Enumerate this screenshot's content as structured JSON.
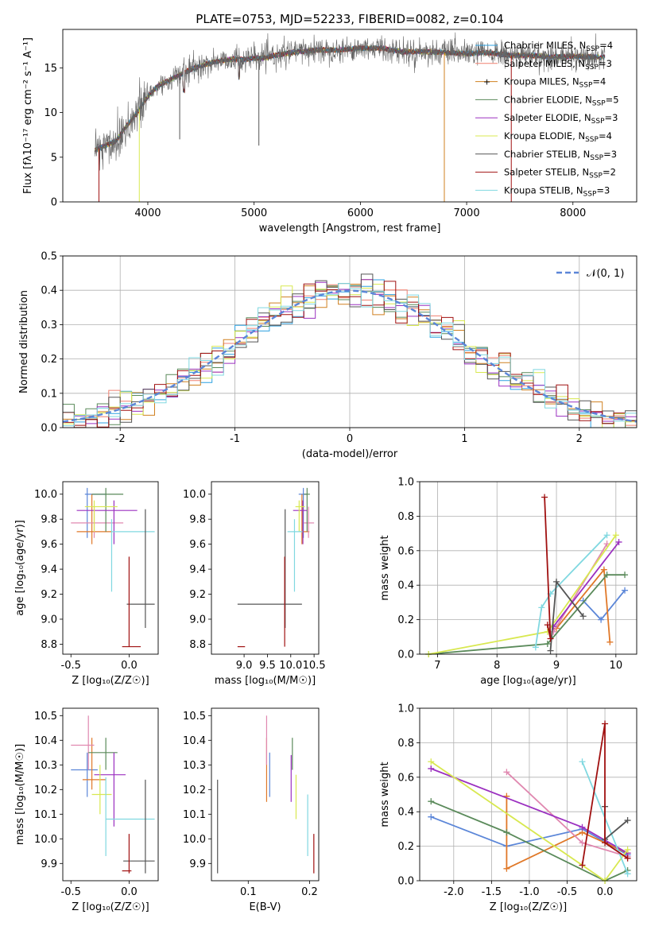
{
  "figure_title": "PLATE=0753, MJD=52233, FIBERID=0082, z=0.104",
  "colors": {
    "chabrier_miles": "#2ca0e0",
    "salpeter_miles": "#f08070",
    "kroupa_miles": "#d08020",
    "chabrier_elodie": "#5a8a5a",
    "salpeter_elodie": "#9b30c0",
    "kroupa_elodie": "#d8e850",
    "chabrier_stelib": "#555555",
    "salpeter_stelib": "#a01010",
    "kroupa_stelib": "#80d8e0",
    "blue": "#5b86d8",
    "orange": "#e07828",
    "pink": "#e088b0",
    "green": "#5a8a5a",
    "purple": "#9b30c0",
    "lime": "#d8e850",
    "grey": "#555555",
    "red": "#a01010",
    "cyan": "#80d8e0"
  },
  "chart_data": [
    {
      "id": "spectrum",
      "type": "line",
      "title": "PLATE=0753, MJD=52233, FIBERID=0082, z=0.104",
      "xlabel": "wavelength [Angstrom, rest frame]",
      "ylabel": "Flux [fλ10⁻¹⁷ erg cm⁻² s⁻¹ A⁻¹]",
      "xlim": [
        3200,
        8600
      ],
      "ylim": [
        0,
        19.3
      ],
      "xticks": [
        4000,
        5000,
        6000,
        7000,
        8000
      ],
      "yticks": [
        0,
        5,
        10,
        15
      ],
      "grid": false,
      "legend_position": "upper right",
      "continuum": [
        [
          3500,
          5.8
        ],
        [
          3700,
          6.8
        ],
        [
          3800,
          8.5
        ],
        [
          3900,
          10.0
        ],
        [
          4000,
          11.8
        ],
        [
          4100,
          13.0
        ],
        [
          4200,
          13.6
        ],
        [
          4300,
          14.2
        ],
        [
          4400,
          14.8
        ],
        [
          4500,
          15.2
        ],
        [
          4600,
          15.6
        ],
        [
          4700,
          15.8
        ],
        [
          4800,
          16.0
        ],
        [
          4900,
          15.9
        ],
        [
          5000,
          16.1
        ],
        [
          5100,
          16.1
        ],
        [
          5200,
          16.4
        ],
        [
          5400,
          16.8
        ],
        [
          5600,
          17.0
        ],
        [
          5800,
          17.0
        ],
        [
          6000,
          17.2
        ],
        [
          6200,
          17.2
        ],
        [
          6400,
          16.8
        ],
        [
          6600,
          16.8
        ],
        [
          6800,
          16.7
        ],
        [
          7000,
          16.6
        ],
        [
          7200,
          16.7
        ],
        [
          7400,
          16.4
        ],
        [
          7600,
          16.4
        ],
        [
          7800,
          16.2
        ],
        [
          8000,
          16.3
        ],
        [
          8200,
          16.2
        ],
        [
          8300,
          16.2
        ]
      ],
      "series": [
        {
          "name": "Chabrier MILES, N_SSP=4",
          "label": "Chabrier MILES, N",
          "sub": "SSP",
          "count": "=4",
          "color_key": "chabrier_miles"
        },
        {
          "name": "Salpeter MILES, N_SSP=3",
          "label": "Salpeter MILES, N",
          "sub": "SSP",
          "count": "=3",
          "color_key": "salpeter_miles"
        },
        {
          "name": "Kroupa MILES, N_SSP=4",
          "label": "Kroupa MILES, N",
          "sub": "SSP",
          "count": "=4",
          "color_key": "kroupa_miles"
        },
        {
          "name": "Chabrier ELODIE, N_SSP=5",
          "label": "Chabrier ELODIE, N",
          "sub": "SSP",
          "count": "=5",
          "color_key": "chabrier_elodie"
        },
        {
          "name": "Salpeter ELODIE, N_SSP=3",
          "label": "Salpeter ELODIE, N",
          "sub": "SSP",
          "count": "=3",
          "color_key": "salpeter_elodie"
        },
        {
          "name": "Kroupa ELODIE, N_SSP=4",
          "label": "Kroupa ELODIE, N",
          "sub": "SSP",
          "count": "=4",
          "color_key": "kroupa_elodie"
        },
        {
          "name": "Chabrier STELIB, N_SSP=3",
          "label": "Chabrier STELIB, N",
          "sub": "SSP",
          "count": "=3",
          "color_key": "chabrier_stelib"
        },
        {
          "name": "Salpeter STELIB, N_SSP=2",
          "label": "Salpeter STELIB, N",
          "sub": "SSP",
          "count": "=2",
          "color_key": "salpeter_stelib"
        },
        {
          "name": "Kroupa STELIB, N_SSP=3",
          "label": "Kroupa STELIB, N",
          "sub": "SSP",
          "count": "=3",
          "color_key": "kroupa_stelib"
        }
      ]
    },
    {
      "id": "histogram",
      "type": "line",
      "xlabel": "(data-model)/error",
      "ylabel": "Normed distribution",
      "xlim": [
        -2.5,
        2.5
      ],
      "ylim": [
        0,
        0.5
      ],
      "xticks": [
        -2,
        -1,
        0,
        1,
        2
      ],
      "yticks": [
        0.0,
        0.1,
        0.2,
        0.3,
        0.4,
        0.5
      ],
      "grid": true,
      "legend": "𝒩(0, 1)",
      "legend_position": "upper right",
      "bin_width": 0.1,
      "series_colors": [
        "chabrier_miles",
        "salpeter_miles",
        "kroupa_miles",
        "chabrier_elodie",
        "salpeter_elodie",
        "kroupa_elodie",
        "chabrier_stelib",
        "salpeter_stelib",
        "kroupa_stelib"
      ]
    },
    {
      "id": "age_vs_Z",
      "type": "scatter",
      "xlabel": "Z [log₁₀(Z/Z☉)]",
      "ylabel": "age  [log₁₀(age/yr)]",
      "xlim": [
        -0.57,
        0.25
      ],
      "ylim": [
        8.72,
        10.1
      ],
      "xticks": [
        -0.5,
        0.0
      ],
      "yticks": [
        8.8,
        9.0,
        9.2,
        9.4,
        9.6,
        9.8,
        10.0
      ],
      "points": [
        {
          "x": -0.36,
          "y": 10.0,
          "xlo": -0.38,
          "xhi": -0.2,
          "ylo": 9.65,
          "yhi": 10.05,
          "color_key": "blue"
        },
        {
          "x": -0.32,
          "y": 9.7,
          "xlo": -0.45,
          "xhi": -0.15,
          "ylo": 9.6,
          "yhi": 10.0,
          "color_key": "orange"
        },
        {
          "x": -0.3,
          "y": 9.77,
          "xlo": -0.5,
          "xhi": -0.05,
          "ylo": 9.65,
          "yhi": 9.9,
          "color_key": "pink"
        },
        {
          "x": -0.2,
          "y": 10.0,
          "xlo": -0.32,
          "xhi": -0.05,
          "ylo": 9.7,
          "yhi": 10.05,
          "color_key": "green"
        },
        {
          "x": -0.13,
          "y": 9.87,
          "xlo": -0.45,
          "xhi": 0.07,
          "ylo": 9.6,
          "yhi": 9.95,
          "color_key": "purple"
        },
        {
          "x": -0.3,
          "y": 9.9,
          "xlo": -0.38,
          "xhi": -0.1,
          "ylo": 9.7,
          "yhi": 9.95,
          "color_key": "lime"
        },
        {
          "x": -0.15,
          "y": 9.7,
          "xlo": -0.15,
          "xhi": 0.22,
          "ylo": 9.22,
          "yhi": 9.8,
          "color_key": "cyan"
        },
        {
          "x": 0.14,
          "y": 9.12,
          "xlo": -0.02,
          "xhi": 0.22,
          "ylo": 8.93,
          "yhi": 9.88,
          "color_key": "grey"
        },
        {
          "x": 0.0,
          "y": 8.78,
          "xlo": -0.06,
          "xhi": 0.1,
          "ylo": 8.78,
          "yhi": 9.5,
          "color_key": "red"
        }
      ]
    },
    {
      "id": "age_vs_mass",
      "type": "scatter",
      "xlabel": "mass [log₁₀(M/M☉)]",
      "ylabel": "",
      "xlim": [
        8.3,
        10.6
      ],
      "ylim": [
        8.72,
        10.1
      ],
      "xticks": [
        9.0,
        9.5,
        10.0,
        10.5
      ],
      "yticks": [
        8.8,
        9.0,
        9.2,
        9.4,
        9.6,
        9.8,
        10.0
      ],
      "points": [
        {
          "x": 10.27,
          "y": 10.0,
          "xlo": 10.17,
          "xhi": 10.35,
          "ylo": 9.65,
          "yhi": 10.05,
          "color_key": "blue"
        },
        {
          "x": 10.24,
          "y": 9.7,
          "xlo": 10.2,
          "xhi": 10.4,
          "ylo": 9.6,
          "yhi": 10.0,
          "color_key": "orange"
        },
        {
          "x": 10.38,
          "y": 9.77,
          "xlo": 10.28,
          "xhi": 10.5,
          "ylo": 9.65,
          "yhi": 9.9,
          "color_key": "pink"
        },
        {
          "x": 10.35,
          "y": 10.0,
          "xlo": 10.28,
          "xhi": 10.41,
          "ylo": 9.7,
          "yhi": 10.05,
          "color_key": "green"
        },
        {
          "x": 10.26,
          "y": 9.87,
          "xlo": 10.05,
          "xhi": 10.35,
          "ylo": 9.6,
          "yhi": 9.95,
          "color_key": "purple"
        },
        {
          "x": 10.18,
          "y": 9.9,
          "xlo": 10.1,
          "xhi": 10.3,
          "ylo": 9.7,
          "yhi": 9.95,
          "color_key": "lime"
        },
        {
          "x": 10.08,
          "y": 9.7,
          "xlo": 9.93,
          "xhi": 10.25,
          "ylo": 9.22,
          "yhi": 9.8,
          "color_key": "cyan"
        },
        {
          "x": 9.88,
          "y": 9.12,
          "xlo": 8.86,
          "xhi": 10.24,
          "ylo": 8.93,
          "yhi": 9.88,
          "color_key": "grey"
        },
        {
          "x": 9.87,
          "y": 8.78,
          "xlo": 8.86,
          "xhi": 9.02,
          "ylo": 8.78,
          "yhi": 9.5,
          "color_key": "red"
        }
      ]
    },
    {
      "id": "weight_vs_age",
      "type": "line",
      "xlabel": "age  [log₁₀(age/yr)]",
      "ylabel": "mass weight",
      "xlim": [
        6.7,
        10.35
      ],
      "ylim": [
        0,
        1.0
      ],
      "xticks": [
        7,
        8,
        9,
        10
      ],
      "yticks": [
        0.0,
        0.2,
        0.4,
        0.6,
        0.8,
        1.0
      ],
      "grid": true,
      "series": [
        {
          "color_key": "blue",
          "points": [
            [
              9.45,
              0.31
            ],
            [
              9.75,
              0.2
            ],
            [
              10.15,
              0.37
            ]
          ]
        },
        {
          "color_key": "orange",
          "points": [
            [
              9.0,
              0.15
            ],
            [
              9.8,
              0.49
            ],
            [
              9.9,
              0.07
            ]
          ]
        },
        {
          "color_key": "pink",
          "points": [
            [
              8.95,
              0.13
            ],
            [
              9.85,
              0.64
            ]
          ]
        },
        {
          "color_key": "green",
          "points": [
            [
              6.85,
              0.0
            ],
            [
              8.85,
              0.06
            ],
            [
              9.85,
              0.46
            ],
            [
              10.15,
              0.46
            ]
          ]
        },
        {
          "color_key": "purple",
          "points": [
            [
              8.95,
              0.16
            ],
            [
              10.05,
              0.65
            ]
          ]
        },
        {
          "color_key": "lime",
          "points": [
            [
              6.85,
              0.0
            ],
            [
              8.85,
              0.13
            ],
            [
              10.0,
              0.69
            ]
          ]
        },
        {
          "color_key": "cyan",
          "points": [
            [
              8.65,
              0.04
            ],
            [
              8.75,
              0.27
            ],
            [
              8.9,
              0.35
            ],
            [
              9.85,
              0.69
            ]
          ]
        },
        {
          "color_key": "grey",
          "points": [
            [
              8.9,
              0.02
            ],
            [
              9.0,
              0.42
            ],
            [
              9.45,
              0.22
            ]
          ]
        },
        {
          "color_key": "red",
          "points": [
            [
              8.85,
              0.17
            ],
            [
              8.9,
              0.09
            ],
            [
              8.8,
              0.91
            ]
          ]
        }
      ]
    },
    {
      "id": "mass_vs_Z",
      "type": "scatter",
      "xlabel": "Z [log₁₀(Z/Z☉)]",
      "ylabel": "mass [log₁₀(M/M☉)]",
      "xlim": [
        -0.57,
        0.25
      ],
      "ylim": [
        9.83,
        10.53
      ],
      "xticks": [
        -0.5,
        0.0
      ],
      "yticks": [
        9.9,
        10.0,
        10.1,
        10.2,
        10.3,
        10.4,
        10.5
      ],
      "points": [
        {
          "x": -0.36,
          "y": 10.28,
          "xlo": -0.5,
          "xhi": -0.27,
          "ylo": 10.17,
          "yhi": 10.35,
          "color_key": "blue"
        },
        {
          "x": -0.32,
          "y": 10.24,
          "xlo": -0.4,
          "xhi": -0.2,
          "ylo": 10.2,
          "yhi": 10.41,
          "color_key": "orange"
        },
        {
          "x": -0.35,
          "y": 10.38,
          "xlo": -0.5,
          "xhi": -0.3,
          "ylo": 10.28,
          "yhi": 10.5,
          "color_key": "pink"
        },
        {
          "x": -0.2,
          "y": 10.35,
          "xlo": -0.35,
          "xhi": -0.1,
          "ylo": 10.28,
          "yhi": 10.41,
          "color_key": "green"
        },
        {
          "x": -0.13,
          "y": 10.26,
          "xlo": -0.3,
          "xhi": -0.03,
          "ylo": 10.05,
          "yhi": 10.35,
          "color_key": "purple"
        },
        {
          "x": -0.25,
          "y": 10.18,
          "xlo": -0.32,
          "xhi": -0.15,
          "ylo": 10.1,
          "yhi": 10.3,
          "color_key": "lime"
        },
        {
          "x": -0.2,
          "y": 10.08,
          "xlo": -0.2,
          "xhi": 0.22,
          "ylo": 9.93,
          "yhi": 10.25,
          "color_key": "cyan"
        },
        {
          "x": 0.14,
          "y": 9.91,
          "xlo": -0.05,
          "xhi": 0.22,
          "ylo": 9.86,
          "yhi": 10.24,
          "color_key": "grey"
        },
        {
          "x": 0.0,
          "y": 9.87,
          "xlo": -0.06,
          "xhi": 0.02,
          "ylo": 9.86,
          "yhi": 10.02,
          "color_key": "red"
        }
      ]
    },
    {
      "id": "mass_vs_EBV",
      "type": "scatter",
      "xlabel": "E(B-V)",
      "ylabel": "",
      "xlim": [
        0.04,
        0.215
      ],
      "ylim": [
        9.83,
        10.53
      ],
      "xticks": [
        0.1,
        0.2
      ],
      "yticks": [
        9.9,
        10.0,
        10.1,
        10.2,
        10.3,
        10.4,
        10.5
      ],
      "points": [
        {
          "x": 0.135,
          "y": 10.28,
          "ylo": 10.17,
          "yhi": 10.35,
          "color_key": "blue"
        },
        {
          "x": 0.13,
          "y": 10.24,
          "ylo": 10.15,
          "yhi": 10.41,
          "color_key": "orange"
        },
        {
          "x": 0.13,
          "y": 10.38,
          "ylo": 10.3,
          "yhi": 10.5,
          "color_key": "pink"
        },
        {
          "x": 0.172,
          "y": 10.35,
          "ylo": 10.28,
          "yhi": 10.41,
          "color_key": "green"
        },
        {
          "x": 0.17,
          "y": 10.26,
          "ylo": 10.15,
          "yhi": 10.34,
          "color_key": "purple"
        },
        {
          "x": 0.178,
          "y": 10.18,
          "ylo": 10.08,
          "yhi": 10.26,
          "color_key": "lime"
        },
        {
          "x": 0.197,
          "y": 10.08,
          "ylo": 9.93,
          "yhi": 10.18,
          "color_key": "cyan"
        },
        {
          "x": 0.05,
          "y": 10.05,
          "ylo": 9.86,
          "yhi": 10.24,
          "color_key": "grey"
        },
        {
          "x": 0.207,
          "y": 9.9,
          "ylo": 9.86,
          "yhi": 10.02,
          "color_key": "red"
        }
      ]
    },
    {
      "id": "weight_vs_Z",
      "type": "line",
      "xlabel": "Z [log₁₀(Z/Z☉)]",
      "ylabel": "mass weight",
      "xlim": [
        -2.45,
        0.42
      ],
      "ylim": [
        0,
        1.0
      ],
      "xticks": [
        -2.0,
        -1.5,
        -1.0,
        -0.5,
        0.0
      ],
      "yticks": [
        0.0,
        0.2,
        0.4,
        0.6,
        0.8,
        1.0
      ],
      "grid": true,
      "series": [
        {
          "color_key": "blue",
          "points": [
            [
              -2.3,
              0.37
            ],
            [
              -1.3,
              0.2
            ],
            [
              -0.3,
              0.3
            ],
            [
              0.3,
              0.15
            ]
          ]
        },
        {
          "color_key": "orange",
          "points": [
            [
              -1.3,
              0.49
            ],
            [
              -1.3,
              0.07
            ],
            [
              -0.3,
              0.28
            ],
            [
              0.3,
              0.16
            ]
          ]
        },
        {
          "color_key": "pink",
          "points": [
            [
              -1.3,
              0.63
            ],
            [
              -0.3,
              0.22
            ],
            [
              0.3,
              0.14
            ]
          ]
        },
        {
          "color_key": "green",
          "points": [
            [
              -2.3,
              0.46
            ],
            [
              -1.3,
              0.28
            ],
            [
              0.0,
              0.0
            ],
            [
              0.3,
              0.06
            ]
          ]
        },
        {
          "color_key": "purple",
          "points": [
            [
              -2.3,
              0.65
            ],
            [
              -0.3,
              0.31
            ],
            [
              0.3,
              0.16
            ]
          ]
        },
        {
          "color_key": "lime",
          "points": [
            [
              -2.3,
              0.69
            ],
            [
              0.0,
              0.0
            ],
            [
              0.3,
              0.18
            ]
          ]
        },
        {
          "color_key": "cyan",
          "points": [
            [
              -0.3,
              0.69
            ],
            [
              0.3,
              0.04
            ]
          ]
        },
        {
          "color_key": "grey",
          "points": [
            [
              0.0,
              0.43
            ],
            [
              0.0,
              0.24
            ],
            [
              0.3,
              0.35
            ]
          ]
        },
        {
          "color_key": "red",
          "points": [
            [
              -0.3,
              0.09
            ],
            [
              0.0,
              0.91
            ],
            [
              0.0,
              0.22
            ],
            [
              0.3,
              0.13
            ]
          ]
        }
      ]
    }
  ]
}
